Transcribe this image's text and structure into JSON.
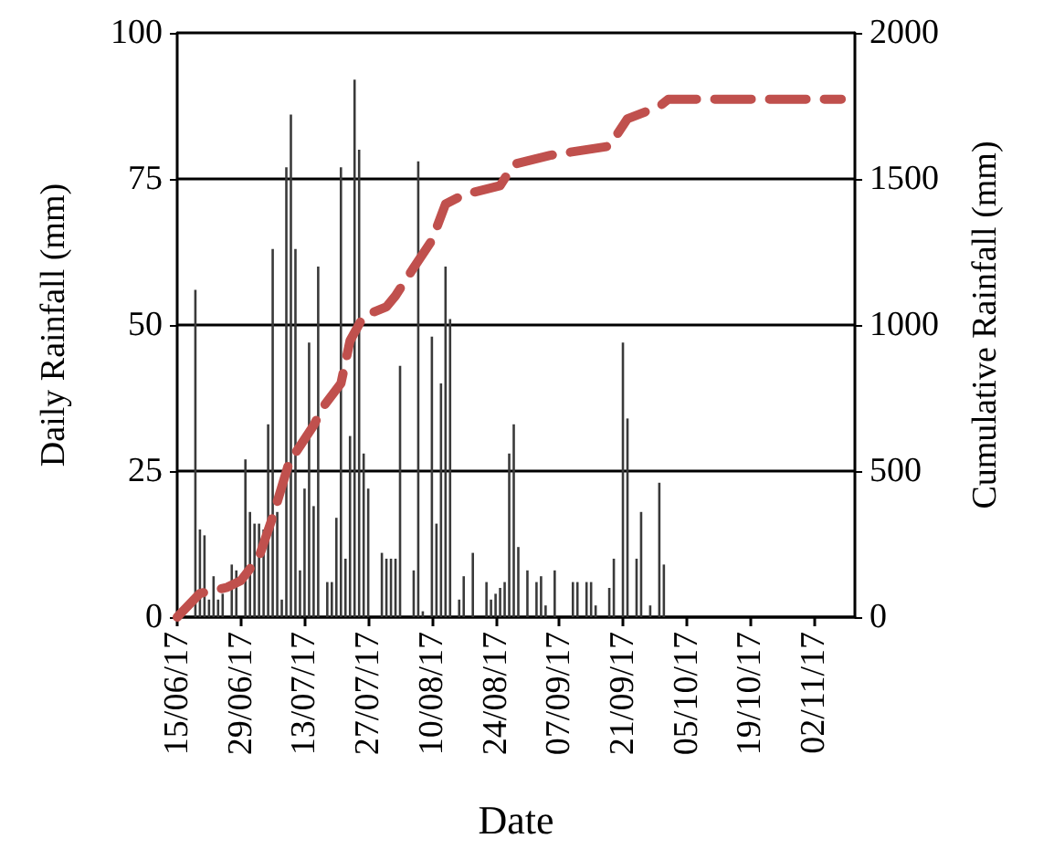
{
  "chart_data": {
    "type": "bar",
    "xlabel": "Date",
    "ylabel": "Daily Rainfall (mm)",
    "y2label": "Cumulative Rainfall (mm)",
    "xlim": [
      "2017-06-15",
      "2017-11-11"
    ],
    "xticks": [
      {
        "value": "2017-06-15",
        "label": "15/06/17"
      },
      {
        "value": "2017-06-29",
        "label": "29/06/17"
      },
      {
        "value": "2017-07-13",
        "label": "13/07/17"
      },
      {
        "value": "2017-07-27",
        "label": "27/07/17"
      },
      {
        "value": "2017-08-10",
        "label": "10/08/17"
      },
      {
        "value": "2017-08-24",
        "label": "24/08/17"
      },
      {
        "value": "2017-09-07",
        "label": "07/09/17"
      },
      {
        "value": "2017-09-21",
        "label": "21/09/17"
      },
      {
        "value": "2017-10-05",
        "label": "05/10/17"
      },
      {
        "value": "2017-10-19",
        "label": "19/10/17"
      },
      {
        "value": "2017-11-02",
        "label": "02/11/17"
      }
    ],
    "ylim": [
      0,
      100
    ],
    "yticks": [
      0,
      25,
      50,
      75,
      100
    ],
    "y2lim": [
      0,
      2000
    ],
    "y2ticks": [
      0,
      500,
      1000,
      1500,
      2000
    ],
    "grid": "y",
    "series": [
      {
        "color": "#3a3a3a",
        "x": [
          "2017-06-19",
          "2017-06-20",
          "2017-06-21",
          "2017-06-22",
          "2017-06-23",
          "2017-06-24",
          "2017-06-25",
          "2017-06-27",
          "2017-06-28",
          "2017-06-30",
          "2017-07-01",
          "2017-07-02",
          "2017-07-03",
          "2017-07-04",
          "2017-07-05",
          "2017-07-06",
          "2017-07-07",
          "2017-07-08",
          "2017-07-09",
          "2017-07-10",
          "2017-07-11",
          "2017-07-12",
          "2017-07-13",
          "2017-07-14",
          "2017-07-15",
          "2017-07-16",
          "2017-07-18",
          "2017-07-19",
          "2017-07-20",
          "2017-07-21",
          "2017-07-22",
          "2017-07-23",
          "2017-07-24",
          "2017-07-25",
          "2017-07-26",
          "2017-07-27",
          "2017-07-30",
          "2017-07-31",
          "2017-08-01",
          "2017-08-02",
          "2017-08-03",
          "2017-08-06",
          "2017-08-07",
          "2017-08-08",
          "2017-08-10",
          "2017-08-11",
          "2017-08-12",
          "2017-08-13",
          "2017-08-14",
          "2017-08-16",
          "2017-08-17",
          "2017-08-19",
          "2017-08-22",
          "2017-08-23",
          "2017-08-24",
          "2017-08-25",
          "2017-08-26",
          "2017-08-27",
          "2017-08-28",
          "2017-08-29",
          "2017-08-31",
          "2017-09-02",
          "2017-09-03",
          "2017-09-04",
          "2017-09-06",
          "2017-09-10",
          "2017-09-11",
          "2017-09-13",
          "2017-09-14",
          "2017-09-15",
          "2017-09-18",
          "2017-09-19",
          "2017-09-21",
          "2017-09-22",
          "2017-09-24",
          "2017-09-25",
          "2017-09-27",
          "2017-09-29",
          "2017-09-30"
        ],
        "values": [
          56,
          15,
          14,
          3,
          7,
          3,
          4,
          9,
          8,
          27,
          18,
          16,
          16,
          15,
          33,
          63,
          18,
          3,
          77,
          86,
          63,
          8,
          22,
          47,
          19,
          60,
          6,
          6,
          17,
          77,
          10,
          31,
          92,
          80,
          28,
          22,
          11,
          10,
          10,
          10,
          43,
          8,
          78,
          1,
          48,
          16,
          40,
          60,
          51,
          3,
          7,
          11,
          6,
          3,
          4,
          5,
          6,
          28,
          33,
          12,
          8,
          6,
          7,
          2,
          8,
          6,
          6,
          6,
          6,
          2,
          5,
          10,
          47,
          34,
          10,
          18,
          2,
          23,
          9
        ]
      },
      {
        "type": "line",
        "axis": "y2",
        "color": "#c0504d",
        "line_style": "dashed",
        "marker": "none",
        "x": [
          "2017-06-15",
          "2017-06-20",
          "2017-06-26",
          "2017-06-29",
          "2017-07-03",
          "2017-07-06",
          "2017-07-10",
          "2017-07-11",
          "2017-07-15",
          "2017-07-17",
          "2017-07-21",
          "2017-07-23",
          "2017-07-26",
          "2017-07-31",
          "2017-08-02",
          "2017-08-06",
          "2017-08-10",
          "2017-08-13",
          "2017-08-17",
          "2017-08-25",
          "2017-08-28",
          "2017-09-05",
          "2017-09-18",
          "2017-09-22",
          "2017-09-29",
          "2017-10-01",
          "2017-11-08"
        ],
        "values": [
          0,
          81,
          102,
          125,
          206,
          343,
          550,
          562,
          656,
          718,
          800,
          946,
          1031,
          1062,
          1100,
          1196,
          1290,
          1414,
          1446,
          1477,
          1550,
          1581,
          1612,
          1706,
          1748,
          1773,
          1773
        ]
      }
    ]
  }
}
